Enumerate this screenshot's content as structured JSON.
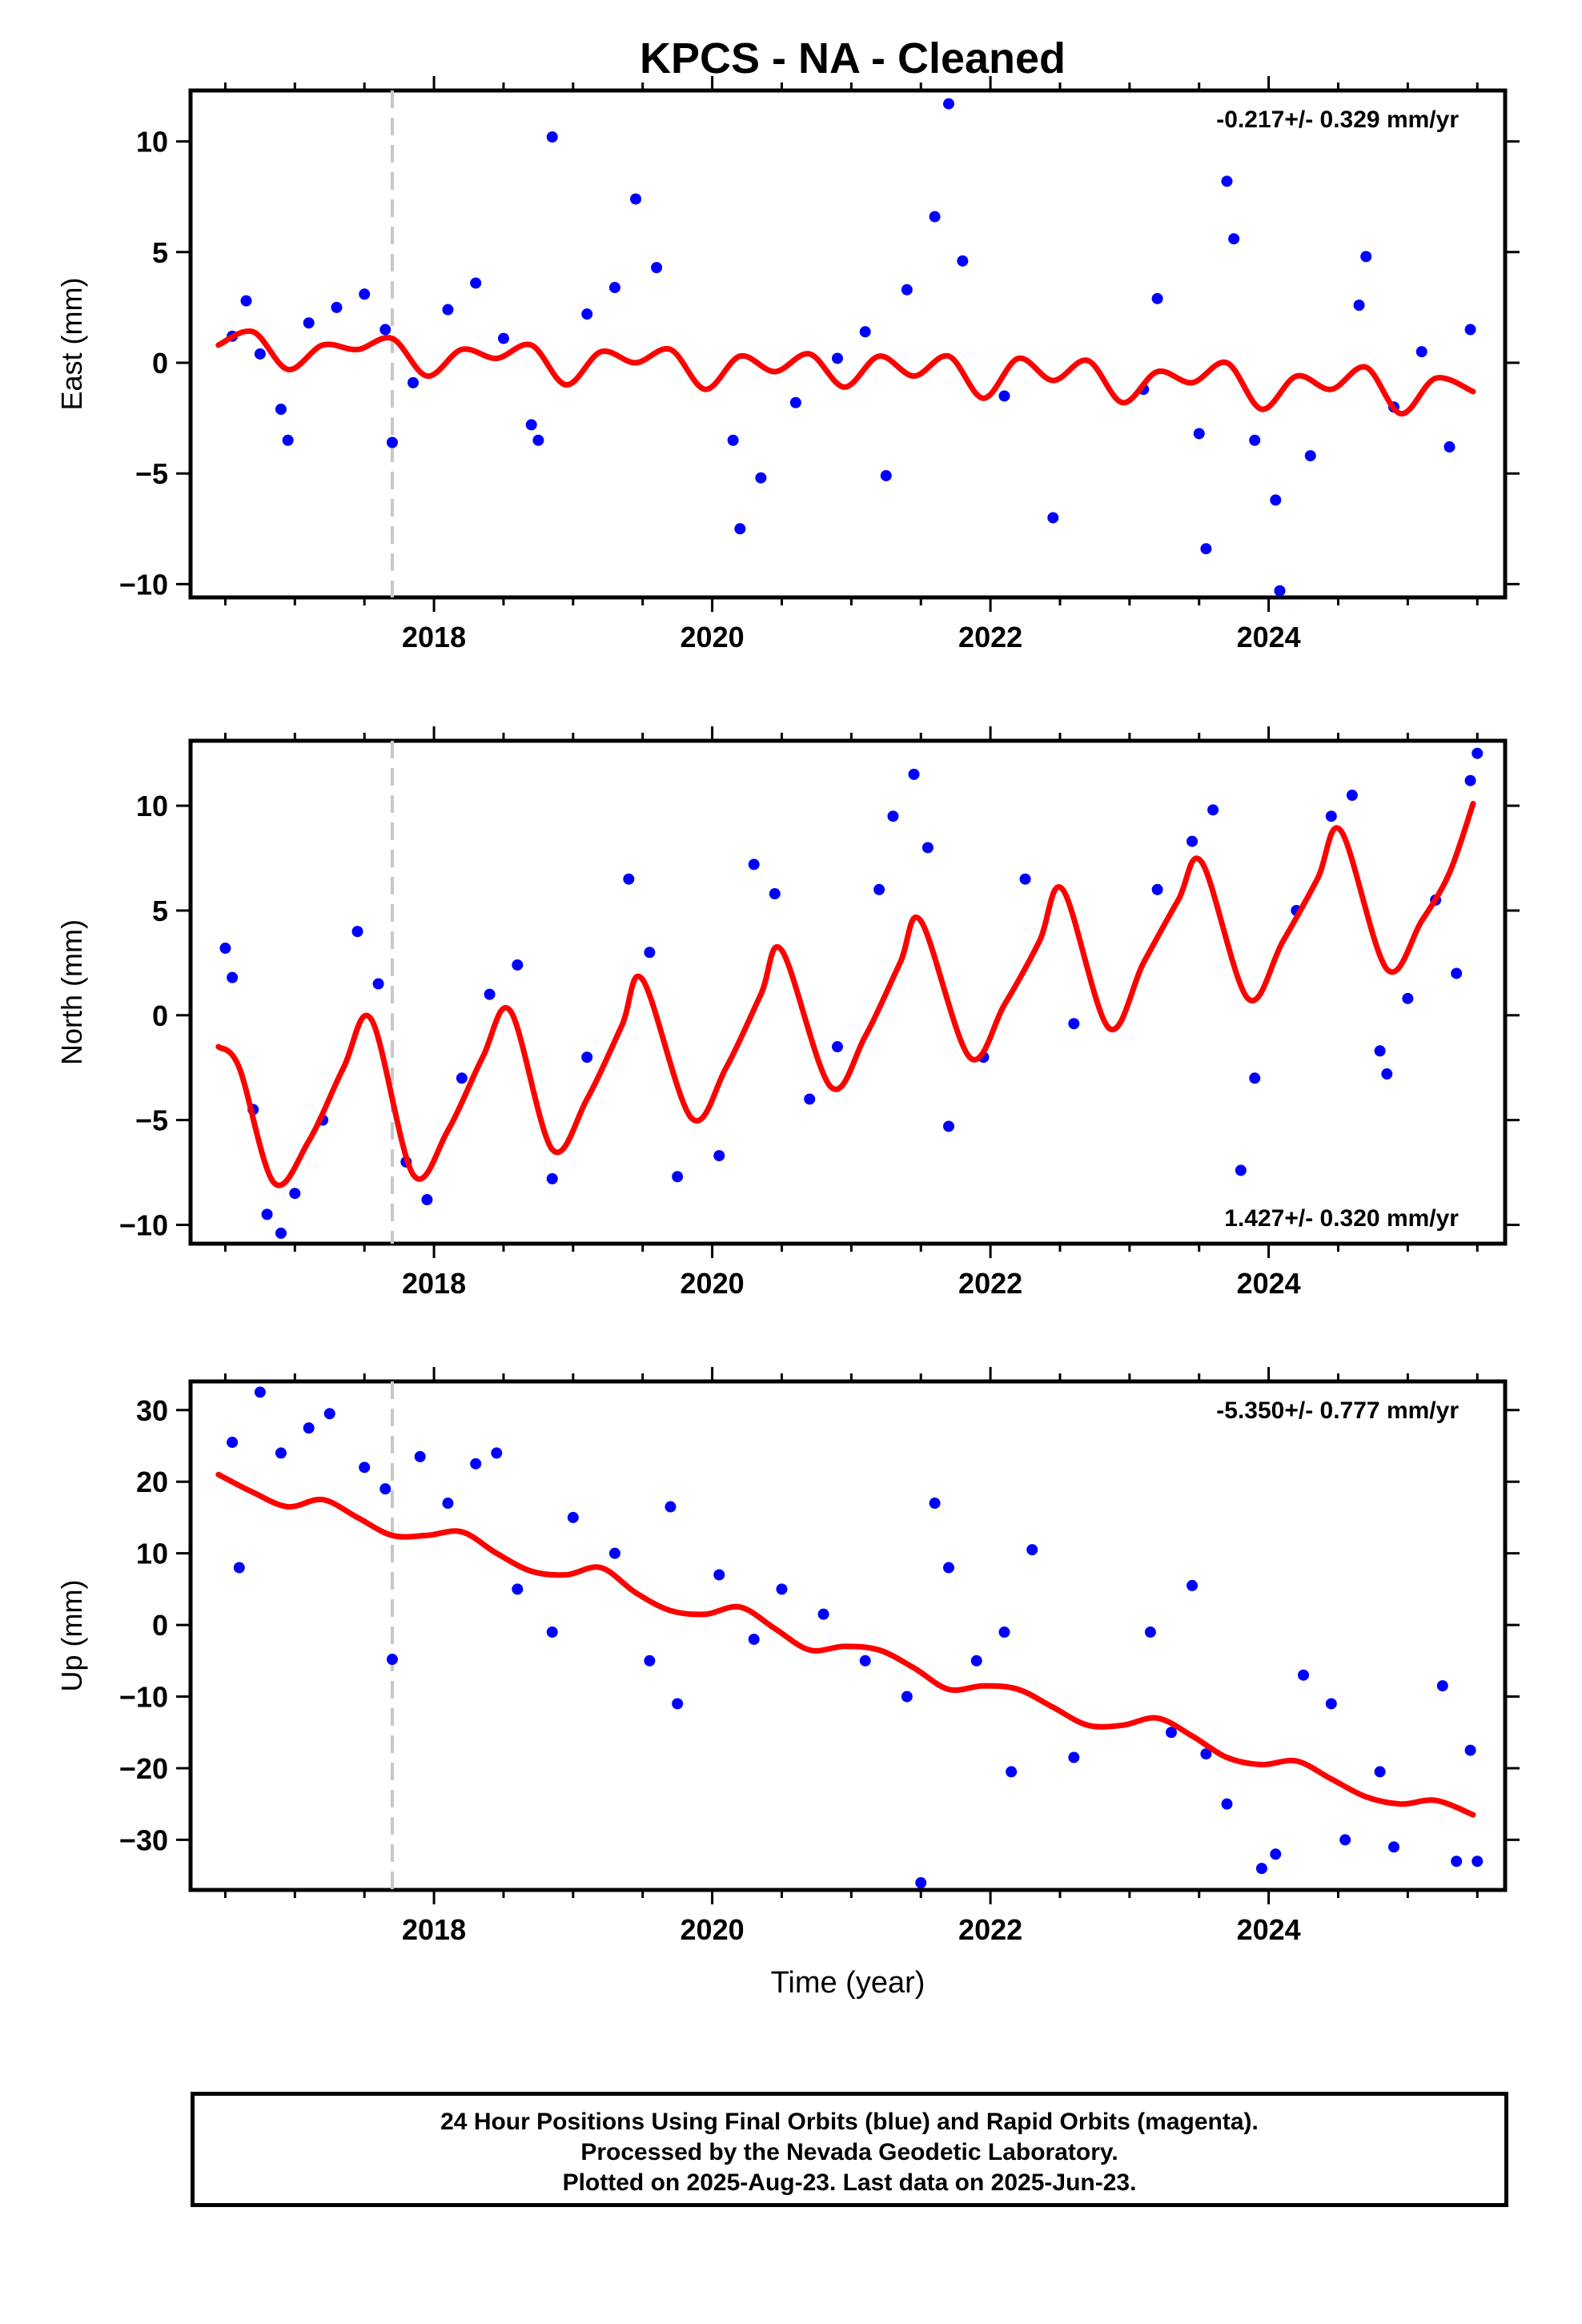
{
  "title": "KPCS  - NA - Cleaned",
  "footer": {
    "line1": "24 Hour Positions Using Final Orbits (blue) and Rapid Orbits (magenta).",
    "line2": "Processed by the Nevada Geodetic Laboratory.",
    "line3": "Plotted on 2025-Aug-23. Last data on 2025-Jun-23."
  },
  "colors": {
    "points": "#0000ff",
    "fit": "#ff0000",
    "event_line": "#c8c8c8"
  },
  "chart_data": [
    {
      "type": "scatter",
      "ylabel": "East (mm)",
      "annotation": "-0.217+/- 0.329 mm/yr",
      "annotation_position": "top-right",
      "xlim": [
        2016.25,
        2025.7
      ],
      "ylim": [
        -10.6,
        12.3
      ],
      "yticks": [
        -10,
        -5,
        0,
        5,
        10
      ],
      "xticks": [
        2018,
        2020,
        2022,
        2024
      ],
      "event_line_x": 2017.7,
      "fit": {
        "x": [
          2016.45,
          2016.7,
          2016.95,
          2017.2,
          2017.45,
          2017.7,
          2017.95,
          2018.2,
          2018.45,
          2018.7,
          2018.95,
          2019.2,
          2019.45,
          2019.7,
          2019.95,
          2020.2,
          2020.45,
          2020.7,
          2020.95,
          2021.2,
          2021.45,
          2021.7,
          2021.95,
          2022.2,
          2022.45,
          2022.7,
          2022.95,
          2023.2,
          2023.45,
          2023.7,
          2023.95,
          2024.2,
          2024.45,
          2024.7,
          2024.95,
          2025.2,
          2025.47
        ],
        "y": [
          0.8,
          1.4,
          -0.3,
          0.8,
          0.6,
          1.1,
          -0.6,
          0.6,
          0.2,
          0.8,
          -1.0,
          0.5,
          0.0,
          0.6,
          -1.2,
          0.3,
          -0.4,
          0.4,
          -1.1,
          0.3,
          -0.6,
          0.3,
          -1.6,
          0.2,
          -0.8,
          0.1,
          -1.8,
          -0.4,
          -0.9,
          0.0,
          -2.1,
          -0.6,
          -1.2,
          -0.2,
          -2.3,
          -0.7,
          -1.3
        ]
      },
      "points": [
        [
          2016.55,
          1.2
        ],
        [
          2016.65,
          2.8
        ],
        [
          2016.75,
          0.4
        ],
        [
          2016.9,
          -2.1
        ],
        [
          2016.95,
          -3.5
        ],
        [
          2017.1,
          1.8
        ],
        [
          2017.3,
          2.5
        ],
        [
          2017.5,
          3.1
        ],
        [
          2017.65,
          1.5
        ],
        [
          2017.7,
          -3.6
        ],
        [
          2017.85,
          -0.9
        ],
        [
          2018.1,
          2.4
        ],
        [
          2018.3,
          3.6
        ],
        [
          2018.5,
          1.1
        ],
        [
          2018.7,
          -2.8
        ],
        [
          2018.75,
          -3.5
        ],
        [
          2018.85,
          10.2
        ],
        [
          2019.1,
          2.2
        ],
        [
          2019.3,
          3.4
        ],
        [
          2019.45,
          7.4
        ],
        [
          2019.6,
          4.3
        ],
        [
          2020.15,
          -3.5
        ],
        [
          2020.2,
          -7.5
        ],
        [
          2020.35,
          -5.2
        ],
        [
          2020.6,
          -1.8
        ],
        [
          2020.9,
          0.2
        ],
        [
          2021.1,
          1.4
        ],
        [
          2021.25,
          -5.1
        ],
        [
          2021.4,
          3.3
        ],
        [
          2021.6,
          6.6
        ],
        [
          2021.7,
          11.7
        ],
        [
          2021.8,
          4.6
        ],
        [
          2022.1,
          -1.5
        ],
        [
          2022.45,
          -7.0
        ],
        [
          2023.1,
          -1.2
        ],
        [
          2023.2,
          2.9
        ],
        [
          2023.5,
          -3.2
        ],
        [
          2023.55,
          -8.4
        ],
        [
          2023.7,
          8.2
        ],
        [
          2023.75,
          5.6
        ],
        [
          2023.9,
          -3.5
        ],
        [
          2024.05,
          -6.2
        ],
        [
          2024.08,
          -10.3
        ],
        [
          2024.3,
          -4.2
        ],
        [
          2024.65,
          2.6
        ],
        [
          2024.7,
          4.8
        ],
        [
          2024.9,
          -2.0
        ],
        [
          2025.1,
          0.5
        ],
        [
          2025.3,
          -3.8
        ],
        [
          2025.45,
          1.5
        ]
      ]
    },
    {
      "type": "scatter",
      "ylabel": "North (mm)",
      "annotation": "1.427+/- 0.320 mm/yr",
      "annotation_position": "bottom-right",
      "xlim": [
        2016.25,
        2025.7
      ],
      "ylim": [
        -10.9,
        13.1
      ],
      "yticks": [
        -10,
        -5,
        0,
        5,
        10
      ],
      "xticks": [
        2018,
        2020,
        2022,
        2024
      ],
      "event_line_x": 2017.7,
      "fit": {
        "x": [
          2016.45,
          2016.6,
          2016.85,
          2017.1,
          2017.35,
          2017.55,
          2017.85,
          2018.1,
          2018.35,
          2018.55,
          2018.85,
          2019.1,
          2019.35,
          2019.5,
          2019.85,
          2020.1,
          2020.35,
          2020.5,
          2020.85,
          2021.1,
          2021.35,
          2021.5,
          2021.85,
          2022.1,
          2022.35,
          2022.52,
          2022.85,
          2023.1,
          2023.35,
          2023.52,
          2023.85,
          2024.1,
          2024.35,
          2024.52,
          2024.85,
          2025.1,
          2025.3,
          2025.47
        ],
        "y": [
          -1.5,
          -2.5,
          -8.0,
          -6.0,
          -2.5,
          -0.2,
          -7.6,
          -5.5,
          -2.0,
          0.2,
          -6.4,
          -4.0,
          -0.5,
          1.7,
          -4.9,
          -2.5,
          1.0,
          3.1,
          -3.4,
          -1.0,
          2.5,
          4.5,
          -2.0,
          0.5,
          3.5,
          6.0,
          -0.6,
          2.5,
          5.5,
          7.3,
          0.8,
          3.5,
          6.5,
          8.8,
          2.2,
          4.5,
          6.8,
          10.1
        ]
      },
      "points": [
        [
          2016.5,
          3.2
        ],
        [
          2016.55,
          1.8
        ],
        [
          2016.7,
          -4.5
        ],
        [
          2016.8,
          -9.5
        ],
        [
          2016.9,
          -10.4
        ],
        [
          2017.0,
          -8.5
        ],
        [
          2017.2,
          -5.0
        ],
        [
          2017.45,
          4.0
        ],
        [
          2017.6,
          1.5
        ],
        [
          2017.8,
          -7.0
        ],
        [
          2017.95,
          -8.8
        ],
        [
          2018.2,
          -3.0
        ],
        [
          2018.4,
          1.0
        ],
        [
          2018.6,
          2.4
        ],
        [
          2018.85,
          -7.8
        ],
        [
          2019.1,
          -2.0
        ],
        [
          2019.4,
          6.5
        ],
        [
          2019.55,
          3.0
        ],
        [
          2019.75,
          -7.7
        ],
        [
          2020.05,
          -6.7
        ],
        [
          2020.3,
          7.2
        ],
        [
          2020.45,
          5.8
        ],
        [
          2020.7,
          -4.0
        ],
        [
          2020.9,
          -1.5
        ],
        [
          2021.2,
          6.0
        ],
        [
          2021.3,
          9.5
        ],
        [
          2021.45,
          11.5
        ],
        [
          2021.55,
          8.0
        ],
        [
          2021.7,
          -5.3
        ],
        [
          2021.95,
          -2.0
        ],
        [
          2022.25,
          6.5
        ],
        [
          2022.6,
          -0.4
        ],
        [
          2023.2,
          6.0
        ],
        [
          2023.45,
          8.3
        ],
        [
          2023.6,
          9.8
        ],
        [
          2023.8,
          -7.4
        ],
        [
          2023.9,
          -3.0
        ],
        [
          2024.2,
          5.0
        ],
        [
          2024.45,
          9.5
        ],
        [
          2024.6,
          10.5
        ],
        [
          2024.8,
          -1.7
        ],
        [
          2024.85,
          -2.8
        ],
        [
          2025.0,
          0.8
        ],
        [
          2025.2,
          5.5
        ],
        [
          2025.35,
          2.0
        ],
        [
          2025.45,
          11.2
        ],
        [
          2025.5,
          12.5
        ]
      ]
    },
    {
      "type": "scatter",
      "ylabel": "Up (mm)",
      "xlabel": "Time (year)",
      "annotation": "-5.350+/- 0.777 mm/yr",
      "annotation_position": "top-right",
      "xlim": [
        2016.25,
        2025.7
      ],
      "ylim": [
        -37,
        34
      ],
      "yticks": [
        -30,
        -20,
        -10,
        0,
        10,
        20,
        30
      ],
      "xticks": [
        2018,
        2020,
        2022,
        2024
      ],
      "event_line_x": 2017.7,
      "fit": {
        "x": [
          2016.45,
          2016.7,
          2016.95,
          2017.2,
          2017.45,
          2017.7,
          2017.95,
          2018.2,
          2018.45,
          2018.7,
          2018.95,
          2019.2,
          2019.45,
          2019.7,
          2019.95,
          2020.2,
          2020.45,
          2020.7,
          2020.95,
          2021.2,
          2021.45,
          2021.7,
          2021.95,
          2022.2,
          2022.45,
          2022.7,
          2022.95,
          2023.2,
          2023.45,
          2023.7,
          2023.95,
          2024.2,
          2024.45,
          2024.7,
          2024.95,
          2025.2,
          2025.47
        ],
        "y": [
          21,
          18.5,
          16.5,
          17.5,
          15,
          12.5,
          12.5,
          13,
          10,
          7.5,
          7,
          8,
          4.5,
          2,
          1.5,
          2.5,
          -0.5,
          -3.5,
          -3,
          -3.5,
          -6,
          -9,
          -8.5,
          -9,
          -11.5,
          -14,
          -14,
          -13,
          -15.5,
          -18.5,
          -19.5,
          -19,
          -21.5,
          -24,
          -25,
          -24.5,
          -26.5
        ]
      },
      "points": [
        [
          2016.55,
          25.5
        ],
        [
          2016.6,
          8.0
        ],
        [
          2016.75,
          32.5
        ],
        [
          2016.9,
          24.0
        ],
        [
          2017.1,
          27.5
        ],
        [
          2017.25,
          29.5
        ],
        [
          2017.5,
          22.0
        ],
        [
          2017.65,
          19.0
        ],
        [
          2017.7,
          -4.8
        ],
        [
          2017.9,
          23.5
        ],
        [
          2018.1,
          17.0
        ],
        [
          2018.3,
          22.5
        ],
        [
          2018.45,
          24.0
        ],
        [
          2018.6,
          5.0
        ],
        [
          2018.85,
          -1.0
        ],
        [
          2019.0,
          15.0
        ],
        [
          2019.3,
          10.0
        ],
        [
          2019.55,
          -5.0
        ],
        [
          2019.7,
          16.5
        ],
        [
          2019.75,
          -11.0
        ],
        [
          2020.05,
          7.0
        ],
        [
          2020.3,
          -2.0
        ],
        [
          2020.5,
          5.0
        ],
        [
          2020.8,
          1.5
        ],
        [
          2021.1,
          -5.0
        ],
        [
          2021.4,
          -10.0
        ],
        [
          2021.5,
          -36.0
        ],
        [
          2021.6,
          17.0
        ],
        [
          2021.7,
          8.0
        ],
        [
          2021.9,
          -5.0
        ],
        [
          2022.1,
          -1.0
        ],
        [
          2022.15,
          -20.5
        ],
        [
          2022.3,
          10.5
        ],
        [
          2022.6,
          -18.5
        ],
        [
          2023.15,
          -1.0
        ],
        [
          2023.3,
          -15.0
        ],
        [
          2023.45,
          5.5
        ],
        [
          2023.55,
          -18.0
        ],
        [
          2023.7,
          -25.0
        ],
        [
          2023.95,
          -34.0
        ],
        [
          2024.05,
          -32.0
        ],
        [
          2024.25,
          -7.0
        ],
        [
          2024.45,
          -11.0
        ],
        [
          2024.55,
          -30.0
        ],
        [
          2024.8,
          -20.5
        ],
        [
          2024.9,
          -31.0
        ],
        [
          2025.25,
          -8.5
        ],
        [
          2025.35,
          -33.0
        ],
        [
          2025.45,
          -17.5
        ],
        [
          2025.5,
          -33.0
        ]
      ]
    }
  ]
}
